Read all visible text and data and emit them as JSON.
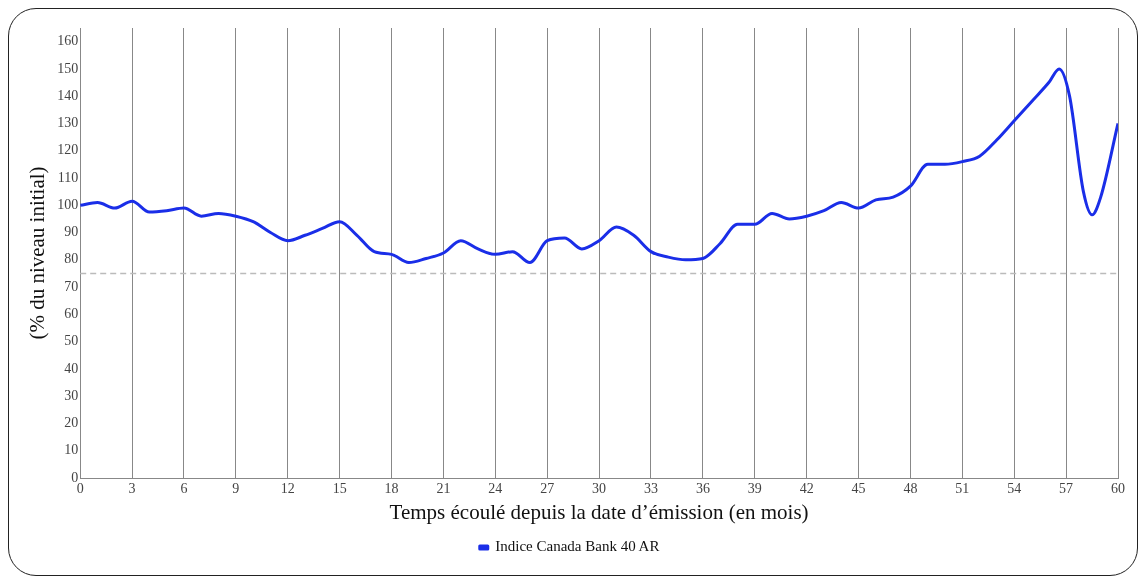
{
  "chart_data": {
    "type": "line",
    "xlabel": "Temps écoulé depuis la date d’émission (en mois)",
    "ylabel": "(% du niveau initial)",
    "x": [
      0,
      1,
      2,
      3,
      4,
      5,
      6,
      7,
      8,
      9,
      10,
      11,
      12,
      13,
      14,
      15,
      16,
      17,
      18,
      19,
      20,
      21,
      22,
      23,
      24,
      25,
      26,
      27,
      28,
      29,
      30,
      31,
      32,
      33,
      34,
      35,
      36,
      37,
      38,
      39,
      40,
      41,
      42,
      43,
      44,
      45,
      46,
      47,
      48,
      49,
      50,
      51,
      52,
      53,
      54,
      55,
      56,
      56.6,
      57.2,
      58,
      58.5,
      59,
      60
    ],
    "series": [
      {
        "name": "Indice Canada Bank 40 AR",
        "color": "#1a2ee8",
        "values": [
          100,
          101,
          99,
          101.5,
          97.5,
          98,
          99,
          96,
          97,
          96,
          94,
          90,
          87,
          89,
          91.5,
          94,
          89,
          83,
          82,
          79,
          80.5,
          82.5,
          87,
          84,
          82,
          83,
          79,
          87,
          88,
          84,
          87,
          92,
          89,
          83,
          81,
          80,
          80.5,
          86,
          93,
          93,
          97,
          95,
          96,
          98,
          101,
          99,
          102,
          103,
          107,
          115,
          115,
          116,
          118,
          124,
          131,
          138,
          145,
          150,
          140,
          105,
          96.5,
          103,
          130
        ]
      }
    ],
    "xlim": [
      0,
      60
    ],
    "xticks": [
      0,
      3,
      6,
      9,
      12,
      15,
      18,
      21,
      24,
      27,
      30,
      33,
      36,
      39,
      42,
      45,
      48,
      51,
      54,
      57,
      60
    ],
    "ylim": [
      0,
      165
    ],
    "yticks": [
      0,
      10,
      20,
      30,
      40,
      50,
      60,
      70,
      80,
      90,
      100,
      110,
      120,
      130,
      140,
      150,
      160
    ],
    "ref_lines": [
      {
        "axis": "y",
        "value": 75,
        "color": "#bbbbbb",
        "line_style": "dashed"
      }
    ],
    "grid": "x",
    "legend": "bottom",
    "marker": "none",
    "line_style": "solid"
  }
}
